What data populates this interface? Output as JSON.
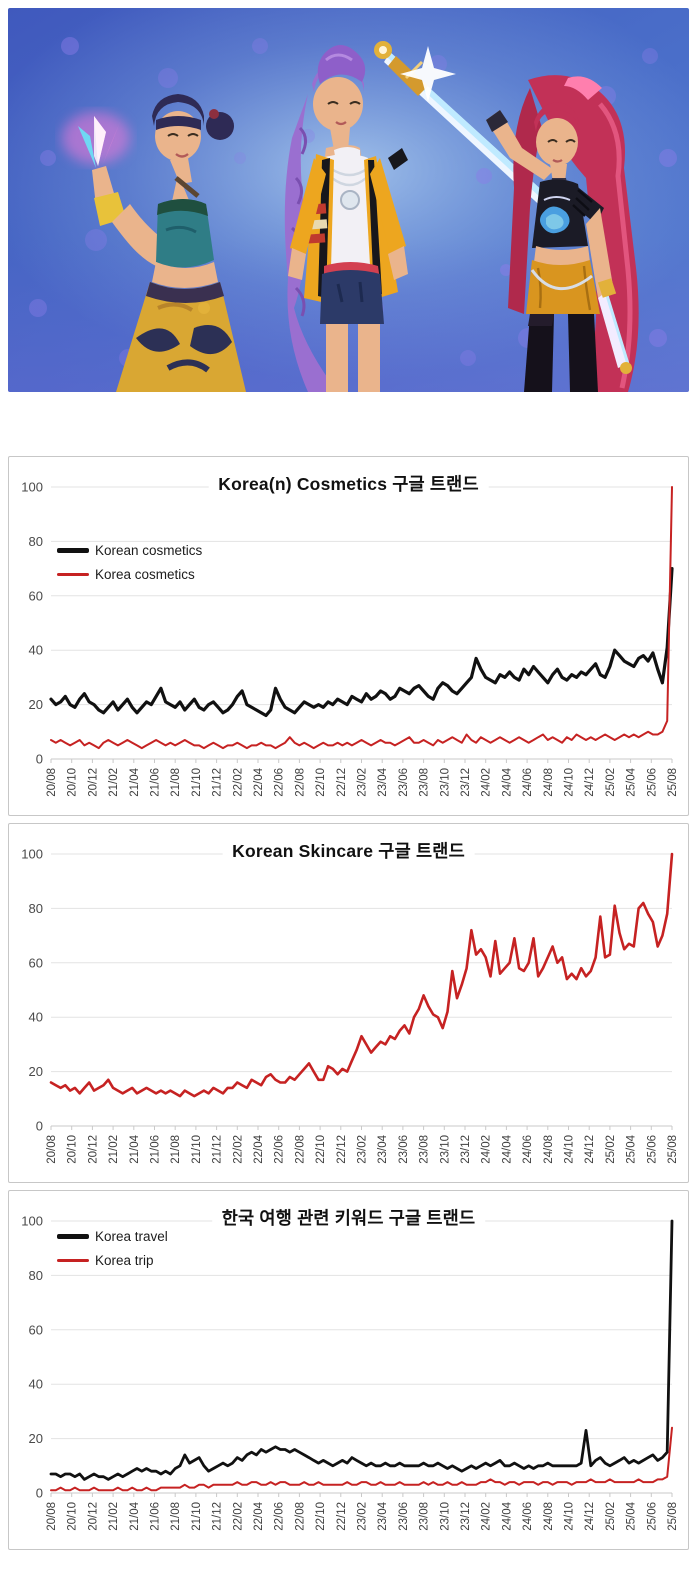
{
  "hero": {
    "description": "Promotional 3D render of three K-pop girl-group characters (HUNTR/X from KPop Demon Hunters) posing with glowing weapons against a blue-purple bokeh background",
    "palette": {
      "bg_top": "#4a63c4",
      "bg_glow": "#a8cdf0",
      "bg_bottom": "#5b6fd0",
      "bokeh": "#8b7ce8",
      "skin": "#eab48c",
      "left_hair": "#2e2a55",
      "left_top": "#2f7d86",
      "left_skirt": "#d9a733",
      "left_skirt_pattern": "#2c3055",
      "center_hair": "#9a6fd0",
      "center_jacket": "#eda61f",
      "center_top": "#f2f0f5",
      "center_shorts": "#2c3a68",
      "center_belt": "#d34050",
      "right_hair": "#c23157",
      "right_tee": "#1b1b26",
      "right_skirt": "#d9951f",
      "right_boots": "#15111b",
      "blade_glow": "#bfeaff",
      "kunai_glow": "#ff7ad9",
      "gold": "#e2b13a"
    }
  },
  "chart_data": [
    {
      "type": "line",
      "title": "Korea(n) Cosmetics 구글 트랜드",
      "ylim": [
        0,
        100
      ],
      "y_ticks": [
        0,
        20,
        40,
        60,
        80,
        100
      ],
      "grid": true,
      "legend_position": "upper-left-inside",
      "x_ticks": [
        "20/08",
        "20/10",
        "20/12",
        "21/02",
        "21/04",
        "21/06",
        "21/08",
        "21/10",
        "21/12",
        "22/02",
        "22/04",
        "22/06",
        "22/08",
        "22/10",
        "22/12",
        "23/02",
        "23/04",
        "23/06",
        "23/08",
        "23/10",
        "23/12",
        "24/02",
        "24/04",
        "24/06",
        "24/08",
        "24/10",
        "24/12",
        "25/02",
        "25/04",
        "25/06",
        "25/08"
      ],
      "series": [
        {
          "name": "Korean cosmetics",
          "color": "#111111",
          "width": 3.2,
          "values": [
            22,
            20,
            21,
            23,
            20,
            19,
            22,
            24,
            21,
            20,
            18,
            17,
            19,
            21,
            18,
            20,
            22,
            19,
            17,
            19,
            21,
            20,
            23,
            26,
            21,
            20,
            19,
            21,
            18,
            20,
            22,
            19,
            18,
            20,
            21,
            19,
            17,
            18,
            20,
            23,
            25,
            20,
            19,
            18,
            17,
            16,
            18,
            26,
            22,
            19,
            18,
            17,
            19,
            21,
            20,
            19,
            20,
            19,
            21,
            20,
            22,
            21,
            20,
            23,
            22,
            21,
            24,
            22,
            23,
            25,
            24,
            22,
            23,
            26,
            25,
            24,
            26,
            27,
            25,
            23,
            22,
            26,
            28,
            27,
            25,
            24,
            26,
            28,
            30,
            37,
            33,
            30,
            29,
            28,
            31,
            30,
            32,
            30,
            29,
            33,
            31,
            34,
            32,
            30,
            28,
            31,
            33,
            30,
            29,
            31,
            30,
            32,
            31,
            33,
            35,
            31,
            30,
            34,
            40,
            38,
            36,
            35,
            34,
            37,
            38,
            36,
            39,
            33,
            28,
            41,
            70
          ]
        },
        {
          "name": "Korea cosmetics",
          "color": "#c62222",
          "width": 2,
          "values": [
            7,
            6,
            7,
            6,
            5,
            6,
            7,
            5,
            6,
            5,
            4,
            6,
            7,
            6,
            5,
            6,
            7,
            6,
            5,
            4,
            5,
            6,
            7,
            6,
            5,
            6,
            5,
            6,
            7,
            6,
            5,
            5,
            4,
            5,
            6,
            5,
            4,
            5,
            5,
            6,
            5,
            4,
            5,
            5,
            6,
            5,
            5,
            4,
            5,
            6,
            8,
            6,
            5,
            6,
            5,
            4,
            5,
            6,
            5,
            5,
            6,
            5,
            6,
            5,
            6,
            7,
            6,
            5,
            6,
            7,
            6,
            6,
            5,
            6,
            7,
            8,
            6,
            6,
            7,
            6,
            5,
            7,
            6,
            7,
            8,
            7,
            6,
            9,
            7,
            6,
            8,
            7,
            6,
            7,
            8,
            7,
            6,
            7,
            8,
            7,
            6,
            7,
            8,
            9,
            7,
            8,
            7,
            6,
            8,
            7,
            9,
            8,
            7,
            8,
            7,
            8,
            9,
            8,
            7,
            8,
            9,
            8,
            9,
            8,
            9,
            10,
            9,
            9,
            10,
            14,
            100
          ]
        }
      ]
    },
    {
      "type": "line",
      "title": "Korean Skincare 구글 트랜드",
      "ylim": [
        0,
        100
      ],
      "y_ticks": [
        0,
        20,
        40,
        60,
        80,
        100
      ],
      "grid": true,
      "legend_position": "none",
      "x_ticks": [
        "20/08",
        "20/10",
        "20/12",
        "21/02",
        "21/04",
        "21/06",
        "21/08",
        "21/10",
        "21/12",
        "22/02",
        "22/04",
        "22/06",
        "22/08",
        "22/10",
        "22/12",
        "23/02",
        "23/04",
        "23/06",
        "23/08",
        "23/10",
        "23/12",
        "24/02",
        "24/04",
        "24/06",
        "24/08",
        "24/10",
        "24/12",
        "25/02",
        "25/04",
        "25/06",
        "25/08"
      ],
      "series": [
        {
          "name": "Korean skincare",
          "color": "#c62222",
          "width": 2.6,
          "values": [
            16,
            15,
            14,
            15,
            13,
            14,
            12,
            14,
            16,
            13,
            14,
            15,
            17,
            14,
            13,
            12,
            13,
            14,
            12,
            13,
            14,
            13,
            12,
            13,
            12,
            13,
            12,
            11,
            13,
            12,
            11,
            12,
            13,
            12,
            14,
            13,
            12,
            14,
            14,
            16,
            15,
            14,
            17,
            16,
            15,
            18,
            19,
            17,
            16,
            16,
            18,
            17,
            19,
            21,
            23,
            20,
            17,
            17,
            22,
            21,
            19,
            21,
            20,
            24,
            28,
            33,
            30,
            27,
            29,
            31,
            30,
            33,
            32,
            35,
            37,
            34,
            40,
            43,
            48,
            44,
            41,
            40,
            36,
            42,
            57,
            47,
            52,
            58,
            72,
            63,
            65,
            62,
            55,
            68,
            56,
            58,
            60,
            69,
            58,
            57,
            60,
            69,
            55,
            58,
            62,
            66,
            60,
            62,
            54,
            56,
            54,
            58,
            55,
            57,
            62,
            77,
            62,
            63,
            81,
            71,
            65,
            67,
            66,
            80,
            82,
            78,
            75,
            66,
            70,
            78,
            100
          ]
        }
      ]
    },
    {
      "type": "line",
      "title": "한국 여행 관련 키워드 구글 트랜드",
      "ylim": [
        0,
        100
      ],
      "y_ticks": [
        0,
        20,
        40,
        60,
        80,
        100
      ],
      "grid": true,
      "legend_position": "upper-left-inside",
      "x_ticks": [
        "20/08",
        "20/10",
        "20/12",
        "21/02",
        "21/04",
        "21/06",
        "21/08",
        "21/10",
        "21/12",
        "22/02",
        "22/04",
        "22/06",
        "22/08",
        "22/10",
        "22/12",
        "23/02",
        "23/04",
        "23/06",
        "23/08",
        "23/10",
        "23/12",
        "24/02",
        "24/04",
        "24/06",
        "24/08",
        "24/10",
        "24/12",
        "25/02",
        "25/04",
        "25/06",
        "25/08"
      ],
      "series": [
        {
          "name": "Korea travel",
          "color": "#111111",
          "width": 2.8,
          "values": [
            7,
            7,
            6,
            7,
            7,
            6,
            7,
            5,
            6,
            7,
            6,
            6,
            5,
            6,
            7,
            6,
            7,
            8,
            9,
            8,
            9,
            8,
            8,
            7,
            8,
            7,
            9,
            10,
            14,
            11,
            12,
            13,
            10,
            8,
            9,
            10,
            11,
            10,
            11,
            13,
            12,
            14,
            15,
            14,
            16,
            15,
            16,
            17,
            16,
            16,
            15,
            16,
            15,
            14,
            13,
            12,
            11,
            12,
            11,
            10,
            11,
            12,
            11,
            13,
            12,
            11,
            10,
            11,
            10,
            10,
            11,
            10,
            10,
            11,
            10,
            10,
            10,
            10,
            11,
            10,
            10,
            11,
            10,
            9,
            10,
            9,
            8,
            9,
            10,
            9,
            10,
            11,
            10,
            11,
            12,
            10,
            10,
            11,
            10,
            9,
            10,
            9,
            10,
            10,
            11,
            10,
            10,
            10,
            10,
            10,
            10,
            11,
            23,
            10,
            12,
            13,
            11,
            10,
            11,
            12,
            13,
            11,
            12,
            11,
            12,
            13,
            14,
            12,
            13,
            15,
            100
          ]
        },
        {
          "name": "Korea trip",
          "color": "#c62222",
          "width": 2,
          "values": [
            1,
            1,
            2,
            1,
            1,
            2,
            1,
            1,
            1,
            2,
            1,
            1,
            1,
            1,
            2,
            1,
            1,
            2,
            1,
            1,
            2,
            1,
            1,
            2,
            2,
            2,
            2,
            2,
            3,
            2,
            2,
            3,
            3,
            2,
            3,
            3,
            3,
            3,
            3,
            4,
            3,
            3,
            4,
            4,
            3,
            3,
            4,
            3,
            4,
            4,
            3,
            3,
            3,
            4,
            3,
            3,
            4,
            3,
            3,
            3,
            3,
            3,
            4,
            3,
            3,
            4,
            4,
            3,
            3,
            4,
            3,
            3,
            3,
            4,
            3,
            3,
            3,
            3,
            4,
            3,
            4,
            3,
            3,
            4,
            3,
            3,
            4,
            3,
            3,
            3,
            4,
            4,
            5,
            4,
            4,
            3,
            4,
            4,
            3,
            4,
            4,
            4,
            3,
            4,
            4,
            3,
            4,
            4,
            4,
            3,
            4,
            4,
            4,
            5,
            4,
            4,
            4,
            5,
            4,
            4,
            4,
            4,
            4,
            5,
            4,
            4,
            4,
            5,
            5,
            6,
            24
          ]
        }
      ]
    }
  ]
}
